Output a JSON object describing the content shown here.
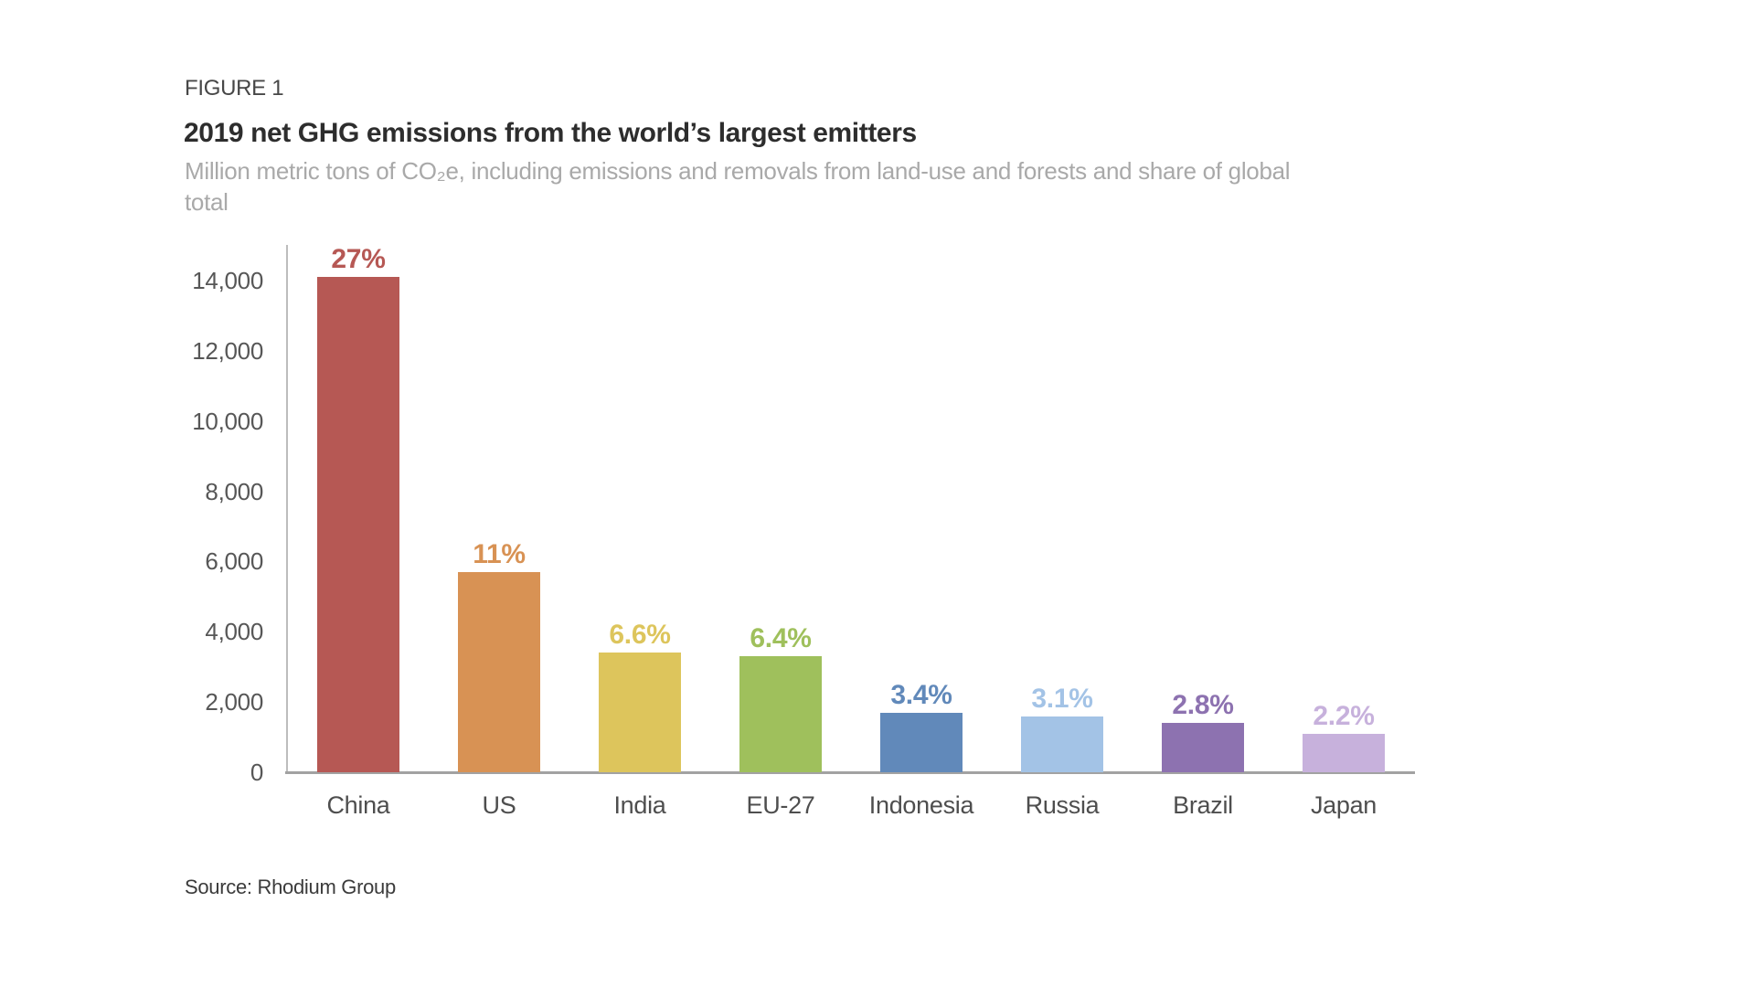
{
  "header": {
    "figure_label": "FIGURE 1",
    "title": "2019 net GHG emissions from the world’s largest emitters",
    "subtitle_lines": [
      "Million metric tons of CO₂e, including emissions and removals from land-use and forests and share of global",
      "total"
    ]
  },
  "source_note": "Source: Rhodium Group",
  "chart_data": {
    "type": "bar",
    "title": "2019 net GHG emissions from the world’s largest emitters",
    "unit_label": "Million metric tons of CO₂e, including emissions and removals from land-use and forests",
    "categories": [
      "China",
      "US",
      "India",
      "EU-27",
      "Indonesia",
      "Russia",
      "Brazil",
      "Japan"
    ],
    "values": [
      14100,
      5700,
      3400,
      3300,
      1700,
      1600,
      1400,
      1100
    ],
    "share_of_global_total": [
      "27%",
      "11%",
      "6.6%",
      "6.4%",
      "3.4%",
      "3.1%",
      "2.8%",
      "2.2%"
    ],
    "bar_colors": [
      "#b65854",
      "#d89254",
      "#ddc55c",
      "#9fc05c",
      "#6189ba",
      "#a3c3e6",
      "#8d72b0",
      "#c7b1dc"
    ],
    "xlabel": "",
    "ylabel": "",
    "ylim": [
      0,
      15000
    ],
    "ytick_values": [
      0,
      2000,
      4000,
      6000,
      8000,
      10000,
      12000,
      14000
    ],
    "ytick_labels": [
      "0",
      "2,000",
      "4,000",
      "6,000",
      "8,000",
      "10,000",
      "12,000",
      "14,000"
    ],
    "grid": false,
    "legend": false,
    "source": "Rhodium Group"
  }
}
